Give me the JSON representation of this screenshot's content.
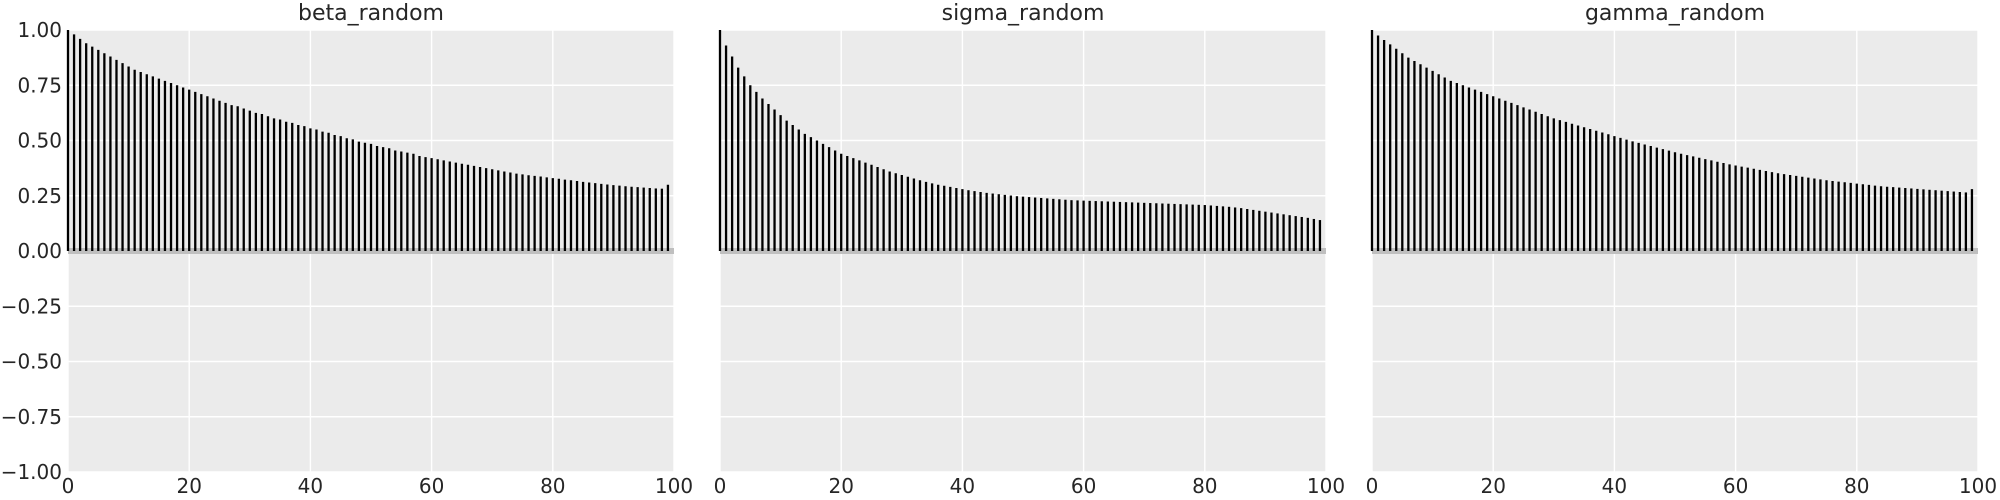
{
  "chart_data": [
    {
      "type": "bar",
      "title": "beta_random",
      "xlabel": "",
      "ylabel": "",
      "xlim": [
        0,
        100
      ],
      "ylim": [
        -1,
        1
      ],
      "x": [
        0,
        1,
        2,
        3,
        4,
        5,
        6,
        7,
        8,
        9,
        10,
        11,
        12,
        13,
        14,
        15,
        16,
        17,
        18,
        19,
        20,
        21,
        22,
        23,
        24,
        25,
        26,
        27,
        28,
        29,
        30,
        31,
        32,
        33,
        34,
        35,
        36,
        37,
        38,
        39,
        40,
        41,
        42,
        43,
        44,
        45,
        46,
        47,
        48,
        49,
        50,
        51,
        52,
        53,
        54,
        55,
        56,
        57,
        58,
        59,
        60,
        61,
        62,
        63,
        64,
        65,
        66,
        67,
        68,
        69,
        70,
        71,
        72,
        73,
        74,
        75,
        76,
        77,
        78,
        79,
        80,
        81,
        82,
        83,
        84,
        85,
        86,
        87,
        88,
        89,
        90,
        91,
        92,
        93,
        94,
        95,
        96,
        97,
        98,
        99
      ],
      "values": [
        1.0,
        0.98,
        0.96,
        0.94,
        0.925,
        0.91,
        0.895,
        0.88,
        0.865,
        0.85,
        0.835,
        0.82,
        0.81,
        0.8,
        0.79,
        0.78,
        0.77,
        0.76,
        0.75,
        0.74,
        0.73,
        0.72,
        0.71,
        0.7,
        0.69,
        0.68,
        0.67,
        0.66,
        0.655,
        0.645,
        0.635,
        0.625,
        0.62,
        0.61,
        0.6,
        0.595,
        0.585,
        0.58,
        0.57,
        0.565,
        0.555,
        0.55,
        0.54,
        0.535,
        0.525,
        0.52,
        0.51,
        0.505,
        0.495,
        0.49,
        0.485,
        0.475,
        0.47,
        0.465,
        0.455,
        0.45,
        0.445,
        0.44,
        0.43,
        0.425,
        0.42,
        0.415,
        0.41,
        0.405,
        0.4,
        0.395,
        0.39,
        0.385,
        0.38,
        0.375,
        0.37,
        0.365,
        0.36,
        0.355,
        0.35,
        0.347,
        0.343,
        0.34,
        0.337,
        0.333,
        0.33,
        0.327,
        0.323,
        0.32,
        0.317,
        0.313,
        0.31,
        0.307,
        0.304,
        0.301,
        0.298,
        0.296,
        0.293,
        0.291,
        0.289,
        0.287,
        0.285,
        0.283,
        0.282,
        0.3
      ],
      "xticks": [
        "0",
        "20",
        "40",
        "60",
        "80",
        "100"
      ],
      "yticks": [
        "1.00",
        "0.75",
        "0.50",
        "0.25",
        "0.00",
        "−0.25",
        "−0.50",
        "−0.75",
        "−1.00"
      ],
      "grid": true
    },
    {
      "type": "bar",
      "title": "sigma_random",
      "xlabel": "",
      "ylabel": "",
      "xlim": [
        0,
        100
      ],
      "ylim": [
        -1,
        1
      ],
      "x": [
        0,
        1,
        2,
        3,
        4,
        5,
        6,
        7,
        8,
        9,
        10,
        11,
        12,
        13,
        14,
        15,
        16,
        17,
        18,
        19,
        20,
        21,
        22,
        23,
        24,
        25,
        26,
        27,
        28,
        29,
        30,
        31,
        32,
        33,
        34,
        35,
        36,
        37,
        38,
        39,
        40,
        41,
        42,
        43,
        44,
        45,
        46,
        47,
        48,
        49,
        50,
        51,
        52,
        53,
        54,
        55,
        56,
        57,
        58,
        59,
        60,
        61,
        62,
        63,
        64,
        65,
        66,
        67,
        68,
        69,
        70,
        71,
        72,
        73,
        74,
        75,
        76,
        77,
        78,
        79,
        80,
        81,
        82,
        83,
        84,
        85,
        86,
        87,
        88,
        89,
        90,
        91,
        92,
        93,
        94,
        95,
        96,
        97,
        98,
        99
      ],
      "values": [
        1.0,
        0.93,
        0.88,
        0.83,
        0.79,
        0.75,
        0.72,
        0.69,
        0.665,
        0.64,
        0.615,
        0.59,
        0.57,
        0.55,
        0.53,
        0.515,
        0.5,
        0.485,
        0.47,
        0.455,
        0.44,
        0.43,
        0.42,
        0.41,
        0.4,
        0.39,
        0.38,
        0.37,
        0.36,
        0.352,
        0.344,
        0.336,
        0.328,
        0.32,
        0.313,
        0.306,
        0.3,
        0.295,
        0.29,
        0.285,
        0.28,
        0.275,
        0.271,
        0.267,
        0.263,
        0.26,
        0.257,
        0.254,
        0.251,
        0.248,
        0.246,
        0.244,
        0.242,
        0.24,
        0.238,
        0.236,
        0.234,
        0.232,
        0.23,
        0.229,
        0.228,
        0.227,
        0.226,
        0.225,
        0.224,
        0.223,
        0.222,
        0.221,
        0.22,
        0.219,
        0.218,
        0.217,
        0.216,
        0.215,
        0.214,
        0.213,
        0.212,
        0.211,
        0.21,
        0.209,
        0.208,
        0.206,
        0.204,
        0.202,
        0.2,
        0.197,
        0.194,
        0.19,
        0.186,
        0.182,
        0.178,
        0.174,
        0.17,
        0.166,
        0.162,
        0.158,
        0.154,
        0.15,
        0.145,
        0.14
      ],
      "xticks": [
        "0",
        "20",
        "40",
        "60",
        "80",
        "100"
      ],
      "grid": true
    },
    {
      "type": "bar",
      "title": "gamma_random",
      "xlabel": "",
      "ylabel": "",
      "xlim": [
        0,
        100
      ],
      "ylim": [
        -1,
        1
      ],
      "x": [
        0,
        1,
        2,
        3,
        4,
        5,
        6,
        7,
        8,
        9,
        10,
        11,
        12,
        13,
        14,
        15,
        16,
        17,
        18,
        19,
        20,
        21,
        22,
        23,
        24,
        25,
        26,
        27,
        28,
        29,
        30,
        31,
        32,
        33,
        34,
        35,
        36,
        37,
        38,
        39,
        40,
        41,
        42,
        43,
        44,
        45,
        46,
        47,
        48,
        49,
        50,
        51,
        52,
        53,
        54,
        55,
        56,
        57,
        58,
        59,
        60,
        61,
        62,
        63,
        64,
        65,
        66,
        67,
        68,
        69,
        70,
        71,
        72,
        73,
        74,
        75,
        76,
        77,
        78,
        79,
        80,
        81,
        82,
        83,
        84,
        85,
        86,
        87,
        88,
        89,
        90,
        91,
        92,
        93,
        94,
        95,
        96,
        97,
        98,
        99
      ],
      "values": [
        1.0,
        0.975,
        0.955,
        0.935,
        0.915,
        0.895,
        0.875,
        0.86,
        0.845,
        0.83,
        0.815,
        0.8,
        0.785,
        0.77,
        0.76,
        0.75,
        0.74,
        0.73,
        0.72,
        0.71,
        0.7,
        0.69,
        0.68,
        0.67,
        0.66,
        0.65,
        0.64,
        0.63,
        0.62,
        0.61,
        0.6,
        0.592,
        0.584,
        0.576,
        0.568,
        0.56,
        0.552,
        0.544,
        0.536,
        0.528,
        0.52,
        0.512,
        0.504,
        0.496,
        0.489,
        0.482,
        0.475,
        0.468,
        0.461,
        0.454,
        0.447,
        0.44,
        0.434,
        0.428,
        0.422,
        0.416,
        0.41,
        0.404,
        0.398,
        0.392,
        0.387,
        0.382,
        0.377,
        0.372,
        0.367,
        0.362,
        0.357,
        0.352,
        0.348,
        0.344,
        0.34,
        0.336,
        0.332,
        0.328,
        0.324,
        0.32,
        0.317,
        0.314,
        0.311,
        0.308,
        0.305,
        0.302,
        0.299,
        0.296,
        0.293,
        0.291,
        0.289,
        0.287,
        0.285,
        0.283,
        0.281,
        0.279,
        0.277,
        0.275,
        0.273,
        0.271,
        0.269,
        0.267,
        0.265,
        0.28
      ],
      "xticks": [
        "0",
        "20",
        "40",
        "60",
        "80",
        "100"
      ],
      "grid": true
    }
  ]
}
